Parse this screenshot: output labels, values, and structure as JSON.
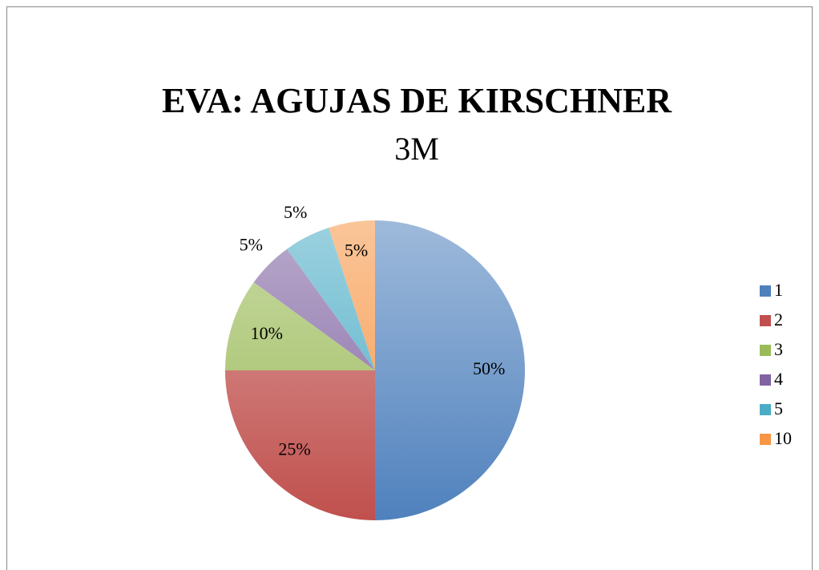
{
  "chart_data": {
    "type": "pie",
    "title": "EVA: AGUJAS DE KIRSCHNER",
    "subtitle": "3M",
    "categories": [
      "1",
      "2",
      "3",
      "4",
      "5",
      "10"
    ],
    "values": [
      50,
      25,
      10,
      5,
      5,
      5
    ],
    "value_labels": [
      "50%",
      "25%",
      "10%",
      "5%",
      "5%",
      "5%"
    ],
    "colors": [
      "#4f81bd",
      "#c0504d",
      "#9bbb59",
      "#8064a2",
      "#4bacc6",
      "#f79646"
    ],
    "legend": "right"
  }
}
